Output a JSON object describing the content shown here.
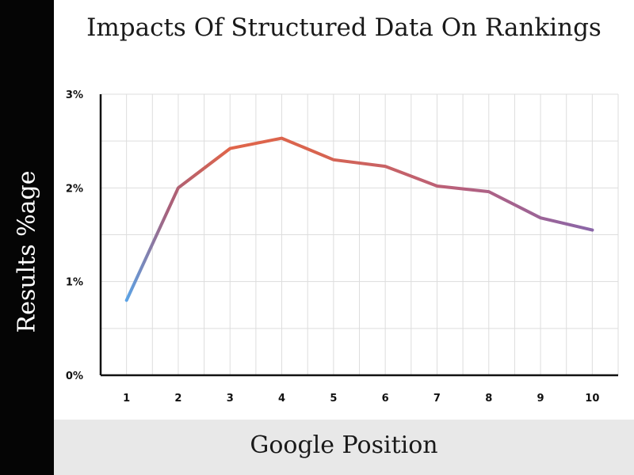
{
  "chart_data": {
    "type": "line",
    "title": "Impacts Of Structured Data On Rankings",
    "xlabel": "Google Position",
    "ylabel": "Results %age",
    "x": [
      1,
      2,
      3,
      4,
      5,
      6,
      7,
      8,
      9,
      10
    ],
    "x_tick_labels": [
      "1",
      "2",
      "3",
      "4",
      "5",
      "6",
      "7",
      "8",
      "9",
      "10"
    ],
    "y_tick_labels": [
      "0%",
      "1%",
      "2%",
      "3%"
    ],
    "y_ticks": [
      0,
      1,
      2,
      3
    ],
    "series": [
      {
        "values": [
          0.8,
          2.0,
          2.42,
          2.53,
          2.3,
          2.23,
          2.02,
          1.96,
          1.68,
          1.55
        ]
      }
    ],
    "xlim": [
      0.5,
      10.5
    ],
    "ylim": [
      0,
      3
    ],
    "grid": true,
    "line_gradient": [
      "#5ba3e6",
      "#a8607a",
      "#e0654a",
      "#d9644e",
      "#b9607a",
      "#8a66a8"
    ],
    "colors": {
      "axis": "#111111",
      "grid": "#dddddd",
      "ylabel_bg": "#050505",
      "xlabel_bg": "#e8e8e8"
    }
  }
}
